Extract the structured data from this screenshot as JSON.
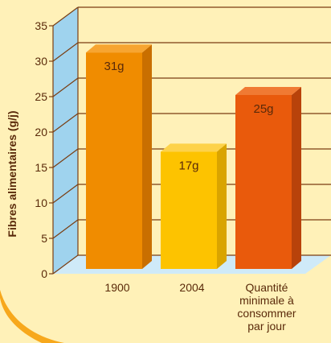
{
  "chart_data": {
    "type": "bar",
    "ylabel": "Fibres alimentaires (g/j)",
    "xlabel": "",
    "title": "",
    "categories": [
      [
        "1900"
      ],
      [
        "2004"
      ],
      [
        "Quantité",
        "minimale à",
        "consommer",
        "par jour"
      ]
    ],
    "values": [
      31,
      17,
      25
    ],
    "value_labels": [
      "31g",
      "17g",
      "25g"
    ],
    "y_ticks": [
      0,
      5,
      10,
      15,
      20,
      25,
      30,
      35
    ],
    "ylim": [
      0,
      35
    ],
    "grid": true,
    "colors": {
      "bars": [
        "#f08c00",
        "#fdc300",
        "#e95a0c"
      ],
      "bar_sides": [
        "#c96f00",
        "#d9a400",
        "#b8420a"
      ],
      "bar_tops": [
        "#f7a531",
        "#fdd24a",
        "#f07a33"
      ],
      "background": "#fff1b8",
      "wall": "#9fd3ee",
      "floor": "#cfeaf8",
      "gridline": "#7a3e12",
      "ring": "#f7a81c",
      "text": "#5a2a0a"
    }
  }
}
